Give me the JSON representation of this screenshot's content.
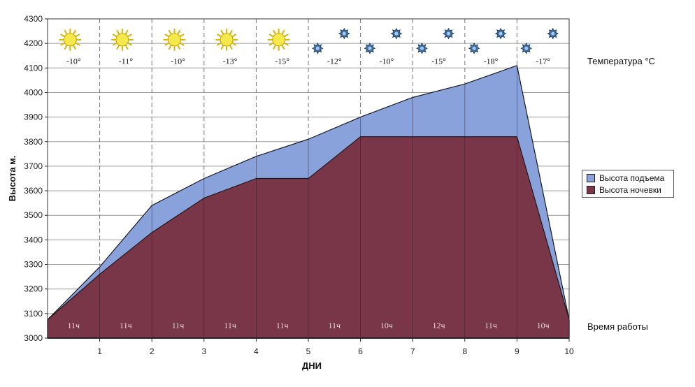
{
  "chart_data": {
    "type": "area",
    "x": [
      0,
      1,
      2,
      3,
      4,
      5,
      6,
      7,
      8,
      9,
      10
    ],
    "series": [
      {
        "name": "Высота подъема",
        "color": "#8aa2dc",
        "values": [
          3075,
          3290,
          3540,
          3650,
          3740,
          3810,
          3900,
          3980,
          4035,
          4110,
          3075
        ]
      },
      {
        "name": "Высота ночевки",
        "color": "#7a3649",
        "values": [
          3075,
          3260,
          3430,
          3570,
          3650,
          3650,
          3820,
          3820,
          3820,
          3820,
          3075
        ]
      }
    ],
    "xlabel": "ДНИ",
    "ylabel": "Высота м.",
    "xlim": [
      0,
      10
    ],
    "ylim": [
      3000,
      4300
    ],
    "y_ticks": [
      "3000",
      "3100",
      "3200",
      "3300",
      "3400",
      "3500",
      "3600",
      "3700",
      "3800",
      "3900",
      "4000",
      "4100",
      "4200",
      "4300"
    ],
    "x_ticks": [
      "1",
      "2",
      "3",
      "4",
      "5",
      "6",
      "7",
      "8",
      "9",
      "10"
    ],
    "grid": true,
    "legend": "right",
    "day_temperatures": [
      "-10°",
      "-11°",
      "-10°",
      "-13°",
      "-15°",
      "-12°",
      "-10°",
      "-15°",
      "-18°",
      "-17°"
    ],
    "day_weather": [
      "sun",
      "sun",
      "sun",
      "sun",
      "sun",
      "snow",
      "snow",
      "snow",
      "snow",
      "snow"
    ],
    "day_work_hours": [
      "11ч",
      "11ч",
      "11ч",
      "11ч",
      "11ч",
      "11ч",
      "10ч",
      "12ч",
      "11ч",
      "10ч"
    ],
    "temperature_label": "Температура °С",
    "work_time_label": "Время работы"
  }
}
